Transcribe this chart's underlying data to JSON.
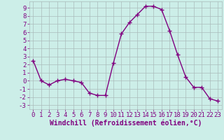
{
  "x": [
    0,
    1,
    2,
    3,
    4,
    5,
    6,
    7,
    8,
    9,
    10,
    11,
    12,
    13,
    14,
    15,
    16,
    17,
    18,
    19,
    20,
    21,
    22,
    23
  ],
  "y": [
    2.5,
    0.0,
    -0.5,
    0.0,
    0.2,
    0.0,
    -0.2,
    -1.5,
    -1.8,
    -1.8,
    2.2,
    5.8,
    7.2,
    8.2,
    9.2,
    9.2,
    8.8,
    6.2,
    3.2,
    0.5,
    -0.8,
    -0.8,
    -2.2,
    -2.5
  ],
  "line_color": "#800080",
  "marker": "+",
  "markersize": 4,
  "linewidth": 1.0,
  "bg_color": "#cceee8",
  "grid_color": "#aabbbb",
  "xlabel": "Windchill (Refroidissement éolien,°C)",
  "xlabel_fontsize": 7,
  "tick_fontsize": 6.5,
  "ylim": [
    -3.5,
    9.8
  ],
  "xlim": [
    -0.5,
    23.5
  ],
  "yticks": [
    -3,
    -2,
    -1,
    0,
    1,
    2,
    3,
    4,
    5,
    6,
    7,
    8,
    9
  ],
  "xticks": [
    0,
    1,
    2,
    3,
    4,
    5,
    6,
    7,
    8,
    9,
    10,
    11,
    12,
    13,
    14,
    15,
    16,
    17,
    18,
    19,
    20,
    21,
    22,
    23
  ]
}
